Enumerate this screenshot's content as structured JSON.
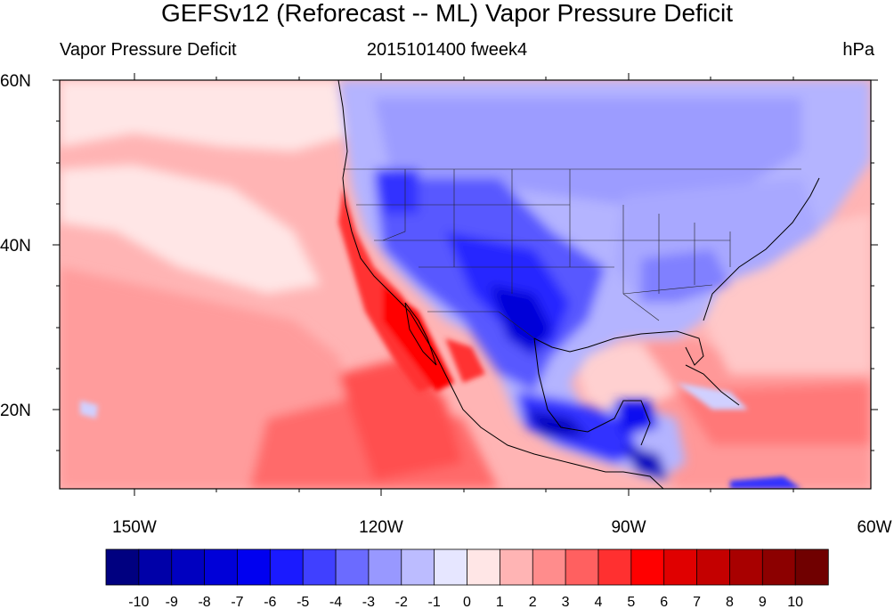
{
  "title": "GEFSv12 (Reforecast -- ML) Vapor Pressure Deficit",
  "subtitle_left": "Vapor Pressure Deficit",
  "subtitle_center": "2015101400 fweek4",
  "subtitle_right": "hPa",
  "map": {
    "lat_labels": [
      {
        "text": "60N",
        "lat": 60
      },
      {
        "text": "40N",
        "lat": 40
      },
      {
        "text": "20N",
        "lat": 20
      }
    ],
    "lon_labels": [
      {
        "text": "150W",
        "lon": -150
      },
      {
        "text": "120W",
        "lon": -120
      },
      {
        "text": "90W",
        "lon": -90
      },
      {
        "text": "60W",
        "lon": -60
      }
    ],
    "lon_range": [
      -159,
      -60
    ],
    "lat_range": [
      10,
      60
    ]
  },
  "colorbar": {
    "labels": [
      "-10",
      "-9",
      "-8",
      "-7",
      "-6",
      "-5",
      "-4",
      "-3",
      "-2",
      "-1",
      "0",
      "1",
      "2",
      "3",
      "4",
      "5",
      "6",
      "7",
      "8",
      "9",
      "10"
    ],
    "colors": [
      "#000080",
      "#0000a8",
      "#0000c0",
      "#0000d8",
      "#0000f0",
      "#1a1aff",
      "#4040ff",
      "#6b6bff",
      "#9898ff",
      "#bcbcff",
      "#e6e6ff",
      "#ffe6e6",
      "#ffb4b4",
      "#ff8c8c",
      "#ff6060",
      "#ff3030",
      "#ff0000",
      "#e00000",
      "#c40000",
      "#a80000",
      "#8c0000",
      "#700000"
    ]
  },
  "colors": {
    "ocean_pacific": "#ff9c9c",
    "land_blue": "#9a9aff",
    "ocean_light": "#ffe6e6"
  }
}
